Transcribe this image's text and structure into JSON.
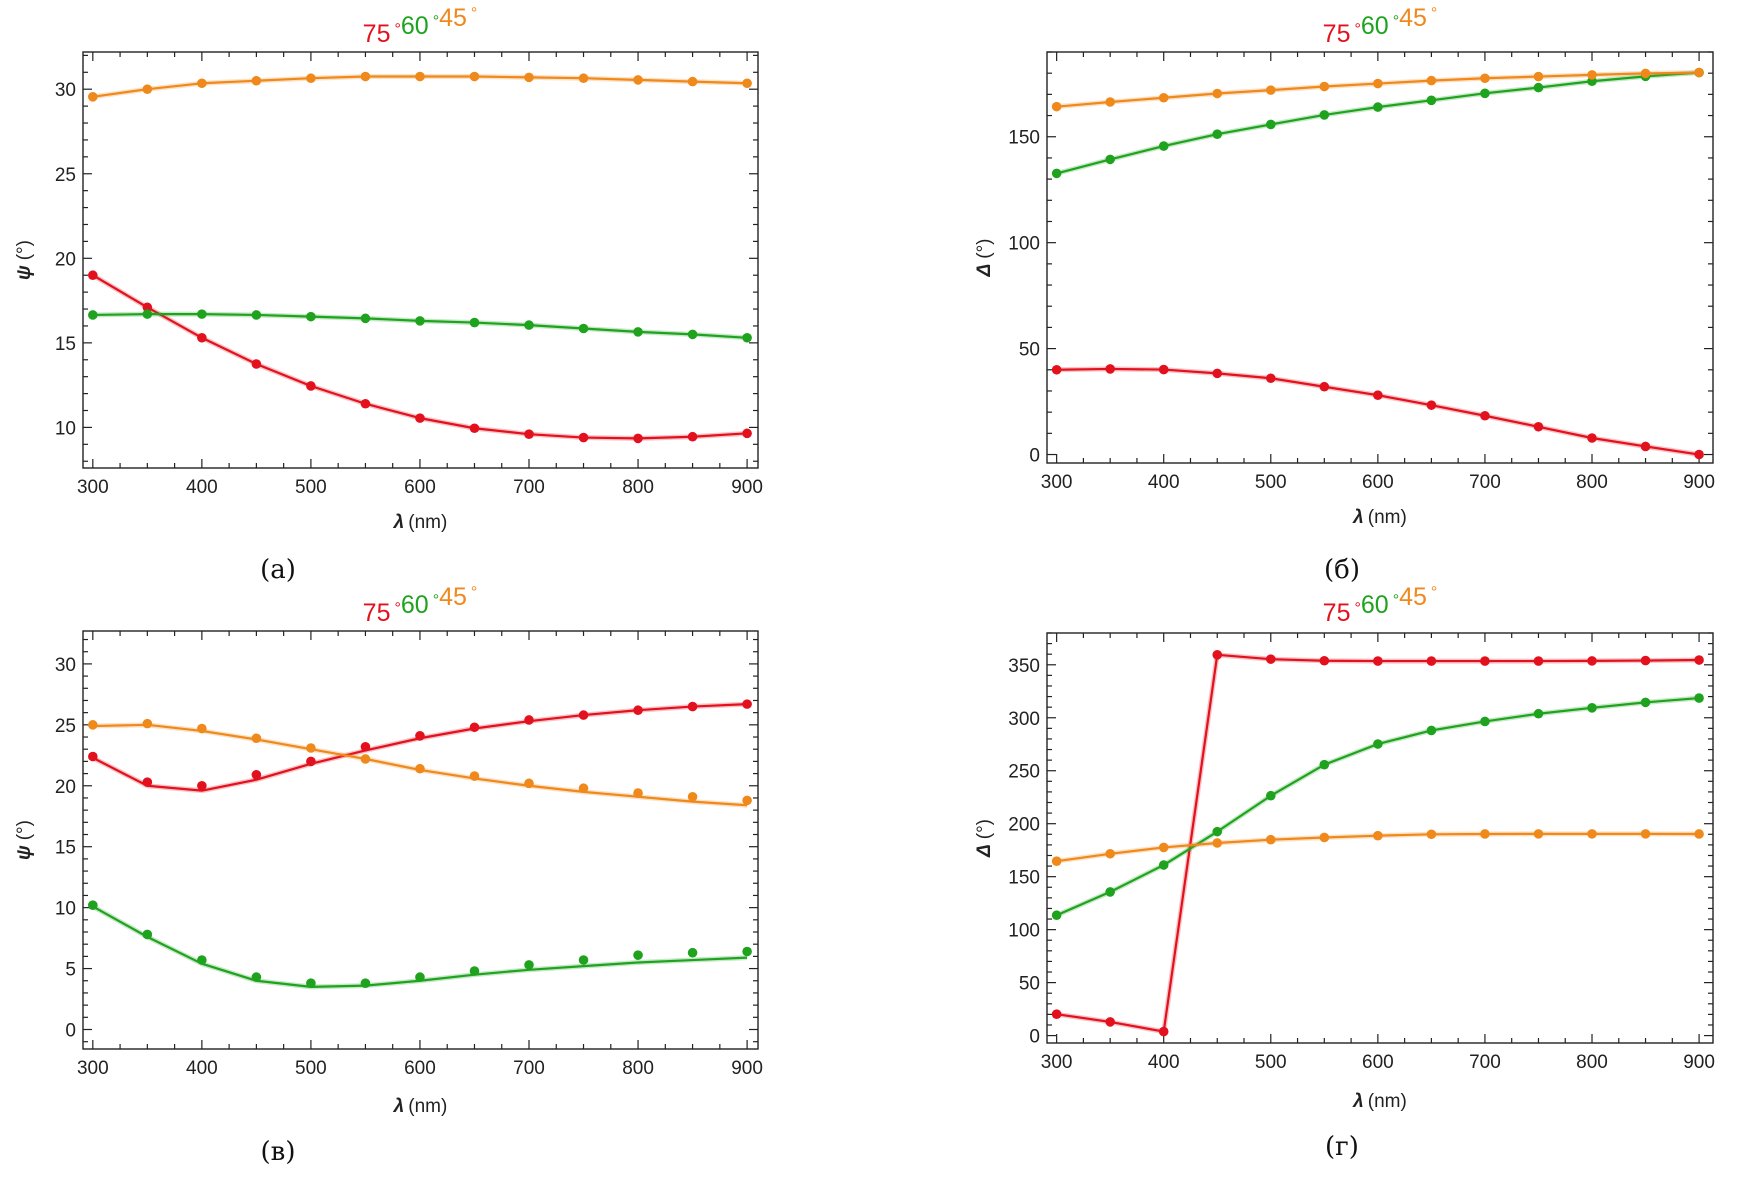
{
  "colors": {
    "75": "#e3111d",
    "60": "#1fa31f",
    "45": "#f0891b"
  },
  "chart_data": [
    {
      "id": "a",
      "type": "line",
      "panel_label": "(а)",
      "title_legend": [
        {
          "label": "75",
          "unit": "°",
          "series": "75"
        },
        {
          "label": "60",
          "unit": "°",
          "series": "60"
        },
        {
          "label": "45",
          "unit": "°",
          "series": "45"
        }
      ],
      "xlabel_symbol": "λ",
      "xlabel_unit": "(nm)",
      "ylabel_symbol": "ψ",
      "ylabel_unit": "(°)",
      "xlim": [
        291,
        910
      ],
      "ylim": [
        7.6,
        32.2
      ],
      "xticks": [
        300,
        400,
        500,
        600,
        700,
        800,
        900
      ],
      "yticks": [
        10,
        15,
        20,
        25,
        30
      ],
      "x": [
        300,
        350,
        400,
        450,
        500,
        550,
        600,
        650,
        700,
        750,
        800,
        850,
        900
      ],
      "series": [
        {
          "name": "75",
          "line": [
            19.0,
            17.1,
            15.3,
            13.75,
            12.45,
            11.4,
            10.55,
            9.95,
            9.6,
            9.4,
            9.35,
            9.45,
            9.65
          ],
          "points": [
            19.0,
            17.1,
            15.3,
            13.75,
            12.45,
            11.4,
            10.55,
            9.95,
            9.6,
            9.4,
            9.35,
            9.45,
            9.65
          ]
        },
        {
          "name": "60",
          "line": [
            16.65,
            16.7,
            16.7,
            16.65,
            16.55,
            16.45,
            16.3,
            16.2,
            16.05,
            15.85,
            15.65,
            15.5,
            15.3
          ],
          "points": [
            16.65,
            16.7,
            16.7,
            16.65,
            16.55,
            16.45,
            16.3,
            16.2,
            16.05,
            15.85,
            15.65,
            15.5,
            15.3
          ]
        },
        {
          "name": "45",
          "line": [
            29.55,
            30.0,
            30.35,
            30.5,
            30.65,
            30.75,
            30.75,
            30.75,
            30.7,
            30.65,
            30.55,
            30.45,
            30.35
          ],
          "points": [
            29.55,
            30.0,
            30.35,
            30.5,
            30.65,
            30.75,
            30.75,
            30.75,
            30.7,
            30.65,
            30.55,
            30.45,
            30.35
          ]
        }
      ]
    },
    {
      "id": "b",
      "type": "line",
      "panel_label": "(б)",
      "title_legend": [
        {
          "label": "75",
          "unit": "°",
          "series": "75"
        },
        {
          "label": "60",
          "unit": "°",
          "series": "60"
        },
        {
          "label": "45",
          "unit": "°",
          "series": "45"
        }
      ],
      "xlabel_symbol": "λ",
      "xlabel_unit": "(nm)",
      "ylabel_symbol": "Δ",
      "ylabel_unit": "(°)",
      "xlim": [
        291,
        913
      ],
      "ylim": [
        -4,
        190
      ],
      "xticks": [
        300,
        400,
        500,
        600,
        700,
        800,
        900
      ],
      "yticks": [
        0,
        50,
        100,
        150
      ],
      "x": [
        300,
        350,
        400,
        450,
        500,
        550,
        600,
        650,
        700,
        750,
        800,
        850,
        900
      ],
      "series": [
        {
          "name": "75",
          "line": [
            40.0,
            40.4,
            40.1,
            38.3,
            36.0,
            32.0,
            28.0,
            23.3,
            18.3,
            13.1,
            7.8,
            3.8,
            0.0
          ],
          "points": [
            40.0,
            40.4,
            40.1,
            38.3,
            36.0,
            32.0,
            28.0,
            23.3,
            18.3,
            13.1,
            7.8,
            3.8,
            0.0
          ]
        },
        {
          "name": "60",
          "line": [
            132.7,
            139.3,
            145.6,
            151.2,
            155.8,
            160.3,
            164.0,
            167.2,
            170.5,
            173.2,
            176.2,
            178.5,
            180.3
          ],
          "points": [
            132.7,
            139.3,
            145.6,
            151.2,
            155.8,
            160.3,
            164.0,
            167.2,
            170.5,
            173.2,
            176.2,
            178.5,
            180.3
          ]
        },
        {
          "name": "45",
          "line": [
            164.2,
            166.4,
            168.4,
            170.4,
            172.0,
            173.7,
            175.1,
            176.5,
            177.6,
            178.4,
            179.2,
            179.9,
            180.3
          ],
          "points": [
            164.2,
            166.4,
            168.4,
            170.4,
            172.0,
            173.7,
            175.1,
            176.5,
            177.6,
            178.4,
            179.2,
            179.9,
            180.3
          ]
        }
      ]
    },
    {
      "id": "c",
      "type": "line",
      "panel_label": "(в)",
      "title_legend": [
        {
          "label": "75",
          "unit": "°",
          "series": "75"
        },
        {
          "label": "60",
          "unit": "°",
          "series": "60"
        },
        {
          "label": "45",
          "unit": "°",
          "series": "45"
        }
      ],
      "xlabel_symbol": "λ",
      "xlabel_unit": "(nm)",
      "ylabel_symbol": "ψ",
      "ylabel_unit": "(°)",
      "xlim": [
        291,
        910
      ],
      "ylim": [
        -1.6,
        32.7
      ],
      "xticks": [
        300,
        400,
        500,
        600,
        700,
        800,
        900
      ],
      "yticks": [
        0,
        5,
        10,
        15,
        20,
        25,
        30
      ],
      "x": [
        300,
        350,
        400,
        450,
        500,
        550,
        600,
        650,
        700,
        750,
        800,
        850,
        900
      ],
      "series": [
        {
          "name": "75",
          "line": [
            22.3,
            20.0,
            19.6,
            20.5,
            21.8,
            22.9,
            23.9,
            24.7,
            25.3,
            25.8,
            26.2,
            26.5,
            26.7
          ],
          "points": [
            22.4,
            20.3,
            20.0,
            20.9,
            22.0,
            23.2,
            24.1,
            24.8,
            25.4,
            25.8,
            26.2,
            26.5,
            26.7
          ]
        },
        {
          "name": "60",
          "line": [
            10.1,
            7.6,
            5.4,
            4.0,
            3.5,
            3.6,
            4.0,
            4.5,
            4.9,
            5.2,
            5.5,
            5.7,
            5.9
          ],
          "points": [
            10.2,
            7.8,
            5.7,
            4.3,
            3.8,
            3.8,
            4.3,
            4.8,
            5.3,
            5.7,
            6.1,
            6.3,
            6.4
          ]
        },
        {
          "name": "45",
          "line": [
            24.9,
            25.0,
            24.5,
            23.8,
            23.0,
            22.2,
            21.3,
            20.6,
            20.0,
            19.5,
            19.1,
            18.7,
            18.4
          ],
          "points": [
            25.0,
            25.1,
            24.7,
            23.9,
            23.1,
            22.2,
            21.4,
            20.8,
            20.2,
            19.8,
            19.4,
            19.1,
            18.8
          ]
        }
      ]
    },
    {
      "id": "d",
      "type": "line",
      "panel_label": "(г)",
      "title_legend": [
        {
          "label": "75",
          "unit": "°",
          "series": "75"
        },
        {
          "label": "60",
          "unit": "°",
          "series": "60"
        },
        {
          "label": "45",
          "unit": "°",
          "series": "45"
        }
      ],
      "xlabel_symbol": "λ",
      "xlabel_unit": "(nm)",
      "ylabel_symbol": "Δ",
      "ylabel_unit": "(°)",
      "xlim": [
        291,
        913
      ],
      "ylim": [
        -7,
        380
      ],
      "xticks": [
        300,
        400,
        500,
        600,
        700,
        800,
        900
      ],
      "yticks": [
        0,
        50,
        100,
        150,
        200,
        250,
        300,
        350
      ],
      "x": [
        300,
        350,
        400,
        450,
        500,
        550,
        600,
        650,
        700,
        750,
        800,
        850,
        900
      ],
      "series": [
        {
          "name": "75",
          "line": [
            20.2,
            12.9,
            3.8,
            359.4,
            355.3,
            353.8,
            353.5,
            353.5,
            353.5,
            353.5,
            353.7,
            354.0,
            354.5
          ],
          "points": [
            20.2,
            12.9,
            3.8,
            359.4,
            355.3,
            353.8,
            353.5,
            353.5,
            353.5,
            353.5,
            353.7,
            354.0,
            354.5
          ]
        },
        {
          "name": "60",
          "line": [
            113.6,
            135.6,
            161.0,
            192.5,
            226.4,
            255.7,
            275.2,
            288.0,
            296.5,
            303.8,
            309.4,
            314.5,
            318.6
          ],
          "points": [
            113.6,
            135.6,
            161.0,
            192.5,
            226.4,
            255.7,
            275.2,
            288.0,
            296.5,
            303.8,
            309.4,
            314.5,
            318.6
          ]
        },
        {
          "name": "45",
          "line": [
            164.6,
            171.6,
            177.6,
            181.8,
            184.9,
            187.0,
            188.7,
            190.0,
            190.3,
            190.4,
            190.4,
            190.4,
            190.3
          ],
          "points": [
            164.6,
            171.6,
            177.6,
            181.8,
            184.9,
            187.0,
            188.7,
            190.0,
            190.3,
            190.4,
            190.4,
            190.4,
            190.3
          ]
        }
      ]
    }
  ]
}
